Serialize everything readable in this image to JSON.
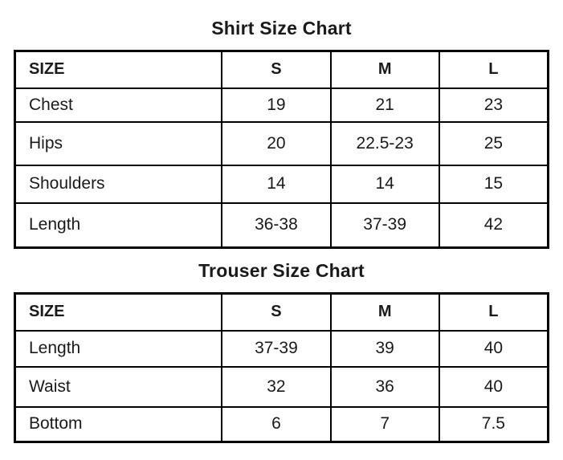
{
  "colors": {
    "background": "#ffffff",
    "text": "#1a1a1a",
    "border": "#000000"
  },
  "chart_data": [
    {
      "type": "table",
      "title": "Shirt Size Chart",
      "columns": [
        "SIZE",
        "S",
        "M",
        "L"
      ],
      "rows": [
        {
          "label": "Chest",
          "values": [
            "19",
            "21",
            "23"
          ]
        },
        {
          "label": "Hips",
          "values": [
            "20",
            "22.5-23",
            "25"
          ]
        },
        {
          "label": "Shoulders",
          "values": [
            "14",
            "14",
            "15"
          ]
        },
        {
          "label": "Length",
          "values": [
            "36-38",
            "37-39",
            "42"
          ]
        }
      ]
    },
    {
      "type": "table",
      "title": "Trouser Size Chart",
      "columns": [
        "SIZE",
        "S",
        "M",
        "L"
      ],
      "rows": [
        {
          "label": "Length",
          "values": [
            "37-39",
            "39",
            "40"
          ]
        },
        {
          "label": "Waist",
          "values": [
            "32",
            "36",
            "40"
          ]
        },
        {
          "label": "Bottom",
          "values": [
            "6",
            "7",
            "7.5"
          ]
        }
      ]
    }
  ]
}
